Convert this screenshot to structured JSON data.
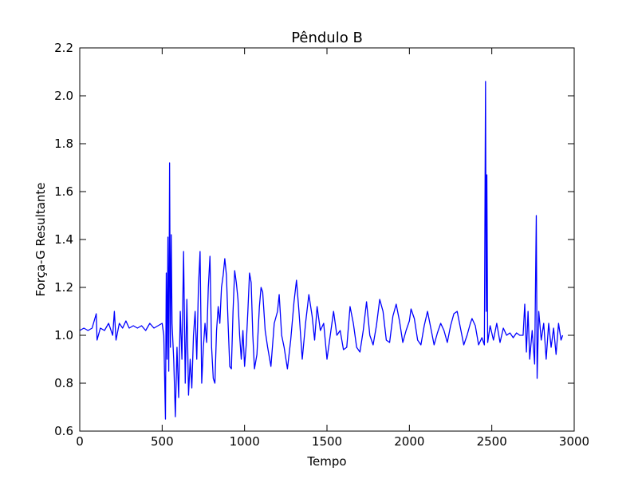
{
  "chart_data": {
    "type": "line",
    "title": "Pêndulo B",
    "xlabel": "Tempo",
    "ylabel": "Força-G Resultante",
    "xlim": [
      0,
      3000
    ],
    "xticks": [
      0,
      500,
      1000,
      1500,
      2000,
      2500,
      3000
    ],
    "ylim": [
      0.6,
      2.2
    ],
    "yticks": [
      0.6,
      0.8,
      {
        "value": 1,
        "label": "1.0"
      },
      1.2,
      1.4,
      1.6,
      1.8,
      {
        "value": 2,
        "label": "2.0"
      },
      2.2
    ],
    "x": [
      0,
      25,
      50,
      75,
      100,
      105,
      125,
      150,
      175,
      200,
      210,
      220,
      240,
      260,
      280,
      300,
      325,
      350,
      375,
      400,
      425,
      450,
      475,
      500,
      510,
      520,
      525,
      530,
      535,
      540,
      545,
      550,
      555,
      560,
      570,
      580,
      590,
      600,
      610,
      620,
      630,
      640,
      650,
      660,
      670,
      680,
      690,
      700,
      710,
      720,
      730,
      740,
      750,
      760,
      770,
      780,
      790,
      800,
      810,
      820,
      830,
      840,
      850,
      860,
      870,
      880,
      890,
      900,
      910,
      920,
      930,
      940,
      950,
      960,
      970,
      980,
      990,
      1000,
      1010,
      1020,
      1030,
      1040,
      1050,
      1060,
      1075,
      1090,
      1100,
      1110,
      1125,
      1140,
      1160,
      1180,
      1200,
      1210,
      1225,
      1240,
      1260,
      1280,
      1300,
      1315,
      1330,
      1350,
      1370,
      1390,
      1410,
      1425,
      1440,
      1460,
      1480,
      1500,
      1520,
      1540,
      1560,
      1580,
      1600,
      1620,
      1640,
      1660,
      1680,
      1700,
      1720,
      1740,
      1760,
      1780,
      1800,
      1820,
      1840,
      1860,
      1880,
      1900,
      1920,
      1940,
      1960,
      1980,
      2000,
      2010,
      2030,
      2050,
      2070,
      2090,
      2110,
      2130,
      2150,
      2170,
      2190,
      2210,
      2230,
      2250,
      2270,
      2290,
      2310,
      2330,
      2350,
      2370,
      2380,
      2400,
      2420,
      2440,
      2455,
      2462,
      2466,
      2470,
      2475,
      2490,
      2510,
      2530,
      2550,
      2570,
      2590,
      2610,
      2630,
      2650,
      2670,
      2690,
      2700,
      2710,
      2720,
      2730,
      2745,
      2760,
      2770,
      2775,
      2785,
      2800,
      2815,
      2830,
      2845,
      2860,
      2875,
      2890,
      2905,
      2920,
      2930
    ],
    "series": [
      {
        "name": "Força-G",
        "color": "#0000ff",
        "values": [
          1.02,
          1.03,
          1.02,
          1.03,
          1.09,
          0.98,
          1.03,
          1.02,
          1.05,
          1.0,
          1.1,
          0.98,
          1.05,
          1.03,
          1.06,
          1.03,
          1.04,
          1.03,
          1.04,
          1.02,
          1.05,
          1.03,
          1.04,
          1.05,
          1.0,
          0.65,
          1.26,
          0.9,
          1.41,
          0.85,
          1.72,
          0.95,
          1.42,
          1.05,
          0.9,
          0.66,
          0.95,
          0.74,
          1.1,
          0.9,
          1.35,
          0.8,
          1.15,
          0.75,
          0.9,
          0.78,
          1.0,
          1.1,
          0.9,
          1.2,
          1.35,
          0.8,
          0.95,
          1.05,
          0.97,
          1.2,
          1.33,
          0.95,
          0.82,
          0.8,
          1.02,
          1.12,
          1.05,
          1.2,
          1.25,
          1.32,
          1.25,
          1.05,
          0.87,
          0.86,
          1.1,
          1.27,
          1.22,
          1.15,
          1.0,
          0.9,
          1.02,
          0.87,
          0.96,
          1.1,
          1.26,
          1.22,
          1.0,
          0.86,
          0.92,
          1.12,
          1.2,
          1.18,
          1.02,
          0.95,
          0.87,
          1.05,
          1.1,
          1.17,
          1.0,
          0.95,
          0.86,
          0.98,
          1.14,
          1.23,
          1.1,
          0.9,
          1.05,
          1.17,
          1.08,
          0.98,
          1.12,
          1.02,
          1.05,
          0.9,
          1.0,
          1.1,
          1.0,
          1.02,
          0.94,
          0.95,
          1.12,
          1.05,
          0.95,
          0.93,
          1.02,
          1.14,
          1.0,
          0.96,
          1.04,
          1.15,
          1.1,
          0.98,
          0.97,
          1.08,
          1.13,
          1.06,
          0.97,
          1.02,
          1.06,
          1.11,
          1.07,
          0.98,
          0.96,
          1.04,
          1.1,
          1.03,
          0.96,
          1.01,
          1.05,
          1.02,
          0.97,
          1.04,
          1.09,
          1.1,
          1.03,
          0.96,
          1.0,
          1.05,
          1.07,
          1.04,
          0.96,
          0.99,
          0.96,
          2.06,
          1.1,
          1.67,
          0.97,
          1.04,
          0.98,
          1.05,
          0.97,
          1.03,
          1.0,
          1.01,
          0.99,
          1.01,
          1.0,
          1.0,
          1.13,
          0.93,
          1.1,
          0.9,
          1.02,
          0.88,
          1.5,
          0.82,
          1.1,
          0.98,
          1.05,
          0.9,
          1.05,
          0.95,
          1.03,
          0.92,
          1.05,
          0.98,
          1.0
        ]
      }
    ]
  }
}
